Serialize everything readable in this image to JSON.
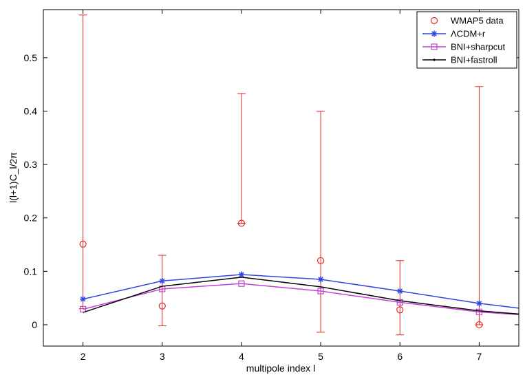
{
  "chart_data": {
    "type": "line",
    "title": "",
    "xlabel": "multipole index l",
    "ylabel": "l(l+1)C_l/2π",
    "xlim": [
      1.5,
      7.5
    ],
    "ylim": [
      -0.04,
      0.59
    ],
    "xticks": [
      "2",
      "3",
      "4",
      "5",
      "6",
      "7"
    ],
    "yticks": [
      "0",
      "0.1",
      "0.2",
      "0.3",
      "0.4",
      "0.5"
    ],
    "grid": false,
    "legend_position": "top-right",
    "series": [
      {
        "name": "WMAP5 data",
        "style": "errorbar",
        "marker": "circle",
        "color": "#e0271e",
        "x": [
          2,
          3,
          4,
          5,
          6,
          7
        ],
        "y": [
          0.151,
          0.035,
          0.19,
          0.12,
          0.028,
          0.0
        ],
        "err_low": [
          0.03,
          -0.002,
          0.19,
          -0.014,
          -0.019,
          0.0
        ],
        "err_high": [
          0.58,
          0.13,
          0.433,
          0.4,
          0.12,
          0.446
        ]
      },
      {
        "name": "ΛCDM+r",
        "style": "line",
        "marker": "star",
        "color": "#2f44e0",
        "x": [
          2,
          3,
          4,
          5,
          6,
          7,
          7.5
        ],
        "y": [
          0.048,
          0.082,
          0.094,
          0.085,
          0.063,
          0.04,
          0.031
        ],
        "marker_x": [
          2,
          3,
          4,
          5,
          6,
          7
        ]
      },
      {
        "name": "BNI+sharpcut",
        "style": "line",
        "marker": "square",
        "color": "#c43fd8",
        "x": [
          2,
          3,
          4,
          5,
          6,
          7,
          7.5
        ],
        "y": [
          0.029,
          0.067,
          0.077,
          0.063,
          0.042,
          0.024,
          0.019
        ],
        "marker_x": [
          2,
          3,
          4,
          5,
          6,
          7
        ]
      },
      {
        "name": "BNI+fastroll",
        "style": "line",
        "marker": "dot",
        "color": "#000000",
        "x": [
          2,
          3,
          4,
          5,
          6,
          7,
          7.5
        ],
        "y": [
          0.023,
          0.072,
          0.089,
          0.071,
          0.045,
          0.026,
          0.02
        ],
        "marker_x": []
      }
    ]
  }
}
